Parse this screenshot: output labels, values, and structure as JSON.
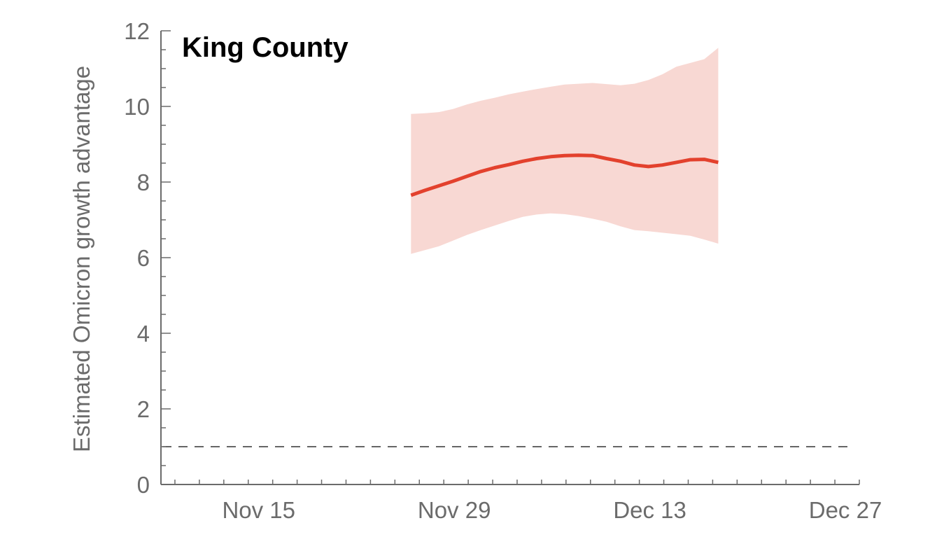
{
  "chart_data": {
    "type": "line",
    "title": "King County",
    "xlabel": "",
    "ylabel": "Estimated Omicron growth advantage",
    "x_tick_labels": [
      "Nov 15",
      "Nov 29",
      "Dec 13",
      "Dec 27"
    ],
    "x_tick_days": [
      14,
      28,
      42,
      56
    ],
    "x_range_days": [
      7,
      57
    ],
    "y_ticks": [
      0,
      2,
      4,
      6,
      8,
      10,
      12
    ],
    "ylim": [
      0,
      12
    ],
    "reference_line": {
      "y": 1,
      "style": "dashed"
    },
    "x_dates": [
      "Nov 25",
      "Nov 26",
      "Nov 27",
      "Nov 28",
      "Nov 29",
      "Nov 30",
      "Dec 1",
      "Dec 2",
      "Dec 3",
      "Dec 4",
      "Dec 5",
      "Dec 6",
      "Dec 7",
      "Dec 8",
      "Dec 9",
      "Dec 10",
      "Dec 11",
      "Dec 12",
      "Dec 13",
      "Dec 14",
      "Dec 15",
      "Dec 16",
      "Dec 17"
    ],
    "x_days": [
      24.9,
      25.9,
      26.9,
      27.9,
      28.9,
      29.9,
      30.9,
      31.9,
      32.9,
      33.9,
      34.9,
      35.9,
      36.9,
      37.9,
      38.9,
      39.9,
      40.9,
      41.9,
      42.9,
      43.9,
      44.9,
      45.9,
      46.9
    ],
    "series": [
      {
        "values": [
          7.65,
          7.78,
          7.9,
          8.02,
          8.15,
          8.28,
          8.38,
          8.46,
          8.55,
          8.62,
          8.67,
          8.7,
          8.71,
          8.7,
          8.62,
          8.55,
          8.45,
          8.41,
          8.45,
          8.52,
          8.59,
          8.6,
          8.52
        ],
        "lower": [
          6.1,
          6.2,
          6.3,
          6.45,
          6.6,
          6.73,
          6.85,
          6.97,
          7.08,
          7.14,
          7.17,
          7.15,
          7.1,
          7.03,
          6.95,
          6.83,
          6.73,
          6.7,
          6.66,
          6.62,
          6.58,
          6.48,
          6.37
        ],
        "upper": [
          9.8,
          9.82,
          9.85,
          9.93,
          10.05,
          10.15,
          10.23,
          10.32,
          10.39,
          10.46,
          10.52,
          10.58,
          10.6,
          10.62,
          10.59,
          10.56,
          10.6,
          10.7,
          10.85,
          11.05,
          11.15,
          11.25,
          11.55
        ]
      }
    ],
    "colors": {
      "line": "#e3412d",
      "band": "#f8d8d3",
      "axis": "#6b6b6b",
      "reference": "#333333",
      "title": "#000000"
    }
  }
}
